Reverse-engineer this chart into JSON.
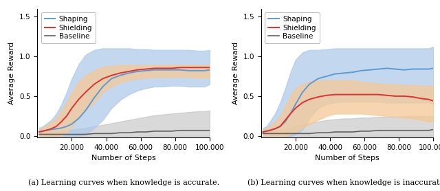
{
  "xlim": [
    0,
    100000
  ],
  "ylim": [
    -0.02,
    1.6
  ],
  "yticks": [
    0,
    0.5,
    1.0,
    1.5
  ],
  "xticks": [
    20000,
    40000,
    60000,
    80000,
    100000
  ],
  "xlabel": "Number of Steps",
  "ylabel": "Average Reward",
  "legend_labels": [
    "Shaping",
    "Shielding",
    "Baseline"
  ],
  "shaping_color": "#5b9bd5",
  "shielding_color": "#e03030",
  "baseline_color": "#606060",
  "shaping_fill_color": "#aac8e8",
  "shielding_fill_color": "#f5c896",
  "baseline_fill_color": "#c0c0c0",
  "caption_a": "(a) Learning curves when knowledge is accurate.",
  "caption_b": "(b) Learning curves when knowledge is inaccurate.",
  "panel_a": {
    "x": [
      1000,
      3000,
      5000,
      8000,
      11000,
      14000,
      17000,
      20000,
      24000,
      28000,
      33000,
      38000,
      43000,
      48000,
      53000,
      58000,
      63000,
      68000,
      73000,
      78000,
      83000,
      88000,
      93000,
      97000,
      100000
    ],
    "shaping_mean": [
      0.05,
      0.06,
      0.07,
      0.08,
      0.09,
      0.1,
      0.12,
      0.15,
      0.22,
      0.32,
      0.48,
      0.62,
      0.72,
      0.76,
      0.79,
      0.81,
      0.82,
      0.83,
      0.83,
      0.83,
      0.83,
      0.82,
      0.82,
      0.82,
      0.83
    ],
    "shaping_upper": [
      0.1,
      0.12,
      0.15,
      0.2,
      0.28,
      0.4,
      0.55,
      0.72,
      0.9,
      1.02,
      1.08,
      1.1,
      1.1,
      1.1,
      1.1,
      1.09,
      1.09,
      1.08,
      1.08,
      1.08,
      1.08,
      1.08,
      1.07,
      1.07,
      1.08
    ],
    "shaping_lower": [
      0.0,
      0.0,
      0.0,
      0.0,
      0.0,
      0.0,
      0.0,
      0.0,
      0.0,
      0.02,
      0.1,
      0.2,
      0.35,
      0.45,
      0.52,
      0.57,
      0.6,
      0.62,
      0.62,
      0.63,
      0.63,
      0.62,
      0.62,
      0.62,
      0.65
    ],
    "shielding_mean": [
      0.05,
      0.06,
      0.07,
      0.09,
      0.12,
      0.18,
      0.25,
      0.35,
      0.46,
      0.55,
      0.65,
      0.72,
      0.76,
      0.79,
      0.81,
      0.83,
      0.84,
      0.85,
      0.85,
      0.85,
      0.86,
      0.86,
      0.86,
      0.86,
      0.86
    ],
    "shielding_upper": [
      0.08,
      0.1,
      0.13,
      0.17,
      0.22,
      0.32,
      0.42,
      0.55,
      0.68,
      0.76,
      0.82,
      0.87,
      0.88,
      0.89,
      0.89,
      0.89,
      0.89,
      0.89,
      0.89,
      0.89,
      0.89,
      0.89,
      0.89,
      0.89,
      0.9
    ],
    "shielding_lower": [
      0.0,
      0.0,
      0.0,
      0.0,
      0.0,
      0.0,
      0.05,
      0.12,
      0.22,
      0.32,
      0.42,
      0.55,
      0.62,
      0.67,
      0.7,
      0.72,
      0.73,
      0.74,
      0.74,
      0.74,
      0.74,
      0.74,
      0.73,
      0.73,
      0.73
    ],
    "baseline_mean": [
      0.02,
      0.02,
      0.02,
      0.02,
      0.02,
      0.02,
      0.02,
      0.02,
      0.02,
      0.02,
      0.03,
      0.03,
      0.03,
      0.04,
      0.04,
      0.05,
      0.05,
      0.06,
      0.06,
      0.06,
      0.07,
      0.07,
      0.07,
      0.07,
      0.07
    ],
    "baseline_upper": [
      0.04,
      0.04,
      0.04,
      0.05,
      0.05,
      0.06,
      0.07,
      0.08,
      0.09,
      0.1,
      0.12,
      0.14,
      0.16,
      0.18,
      0.2,
      0.22,
      0.24,
      0.26,
      0.27,
      0.28,
      0.29,
      0.3,
      0.31,
      0.31,
      0.32
    ],
    "baseline_lower": [
      0.0,
      0.0,
      0.0,
      0.0,
      0.0,
      0.0,
      0.0,
      0.0,
      0.0,
      0.0,
      0.0,
      0.0,
      0.0,
      0.0,
      0.0,
      0.0,
      0.0,
      0.0,
      0.0,
      0.0,
      0.0,
      0.0,
      0.0,
      0.0,
      0.0
    ]
  },
  "panel_b": {
    "x": [
      1000,
      3000,
      5000,
      8000,
      11000,
      14000,
      17000,
      20000,
      24000,
      28000,
      33000,
      38000,
      43000,
      48000,
      53000,
      58000,
      63000,
      68000,
      73000,
      78000,
      83000,
      88000,
      93000,
      97000,
      100000
    ],
    "shaping_mean": [
      0.05,
      0.06,
      0.07,
      0.09,
      0.12,
      0.18,
      0.28,
      0.4,
      0.55,
      0.65,
      0.72,
      0.75,
      0.78,
      0.79,
      0.8,
      0.82,
      0.83,
      0.84,
      0.85,
      0.84,
      0.83,
      0.84,
      0.84,
      0.84,
      0.85
    ],
    "shaping_upper": [
      0.1,
      0.12,
      0.18,
      0.28,
      0.42,
      0.6,
      0.8,
      0.96,
      1.05,
      1.08,
      1.08,
      1.09,
      1.1,
      1.1,
      1.1,
      1.1,
      1.1,
      1.1,
      1.1,
      1.1,
      1.1,
      1.1,
      1.1,
      1.1,
      1.12
    ],
    "shaping_lower": [
      0.0,
      0.0,
      0.0,
      0.0,
      0.0,
      0.0,
      0.0,
      0.02,
      0.08,
      0.22,
      0.35,
      0.4,
      0.42,
      0.43,
      0.43,
      0.43,
      0.43,
      0.43,
      0.42,
      0.42,
      0.42,
      0.42,
      0.42,
      0.42,
      0.4
    ],
    "shielding_mean": [
      0.05,
      0.06,
      0.07,
      0.09,
      0.12,
      0.2,
      0.28,
      0.35,
      0.42,
      0.46,
      0.49,
      0.51,
      0.52,
      0.52,
      0.52,
      0.52,
      0.52,
      0.52,
      0.51,
      0.5,
      0.5,
      0.49,
      0.47,
      0.46,
      0.44
    ],
    "shielding_upper": [
      0.08,
      0.1,
      0.12,
      0.18,
      0.25,
      0.38,
      0.5,
      0.6,
      0.65,
      0.68,
      0.7,
      0.7,
      0.7,
      0.7,
      0.7,
      0.68,
      0.67,
      0.66,
      0.65,
      0.65,
      0.64,
      0.64,
      0.63,
      0.63,
      0.63
    ],
    "shielding_lower": [
      0.0,
      0.0,
      0.0,
      0.0,
      0.0,
      0.0,
      0.02,
      0.05,
      0.1,
      0.15,
      0.2,
      0.25,
      0.28,
      0.28,
      0.28,
      0.28,
      0.27,
      0.26,
      0.25,
      0.24,
      0.23,
      0.22,
      0.2,
      0.18,
      0.18
    ],
    "baseline_mean": [
      0.03,
      0.03,
      0.03,
      0.03,
      0.03,
      0.03,
      0.03,
      0.03,
      0.03,
      0.03,
      0.04,
      0.04,
      0.05,
      0.05,
      0.05,
      0.06,
      0.06,
      0.07,
      0.07,
      0.07,
      0.07,
      0.07,
      0.07,
      0.07,
      0.08
    ],
    "baseline_upper": [
      0.05,
      0.05,
      0.06,
      0.07,
      0.08,
      0.09,
      0.1,
      0.12,
      0.14,
      0.16,
      0.18,
      0.2,
      0.21,
      0.22,
      0.22,
      0.23,
      0.23,
      0.24,
      0.24,
      0.24,
      0.25,
      0.25,
      0.25,
      0.25,
      0.25
    ],
    "baseline_lower": [
      0.0,
      0.0,
      0.0,
      0.0,
      0.0,
      0.0,
      0.0,
      0.0,
      0.0,
      0.0,
      0.0,
      0.0,
      0.0,
      0.0,
      0.0,
      0.0,
      0.0,
      0.0,
      0.0,
      0.0,
      0.0,
      0.0,
      0.0,
      0.0,
      0.0
    ]
  }
}
